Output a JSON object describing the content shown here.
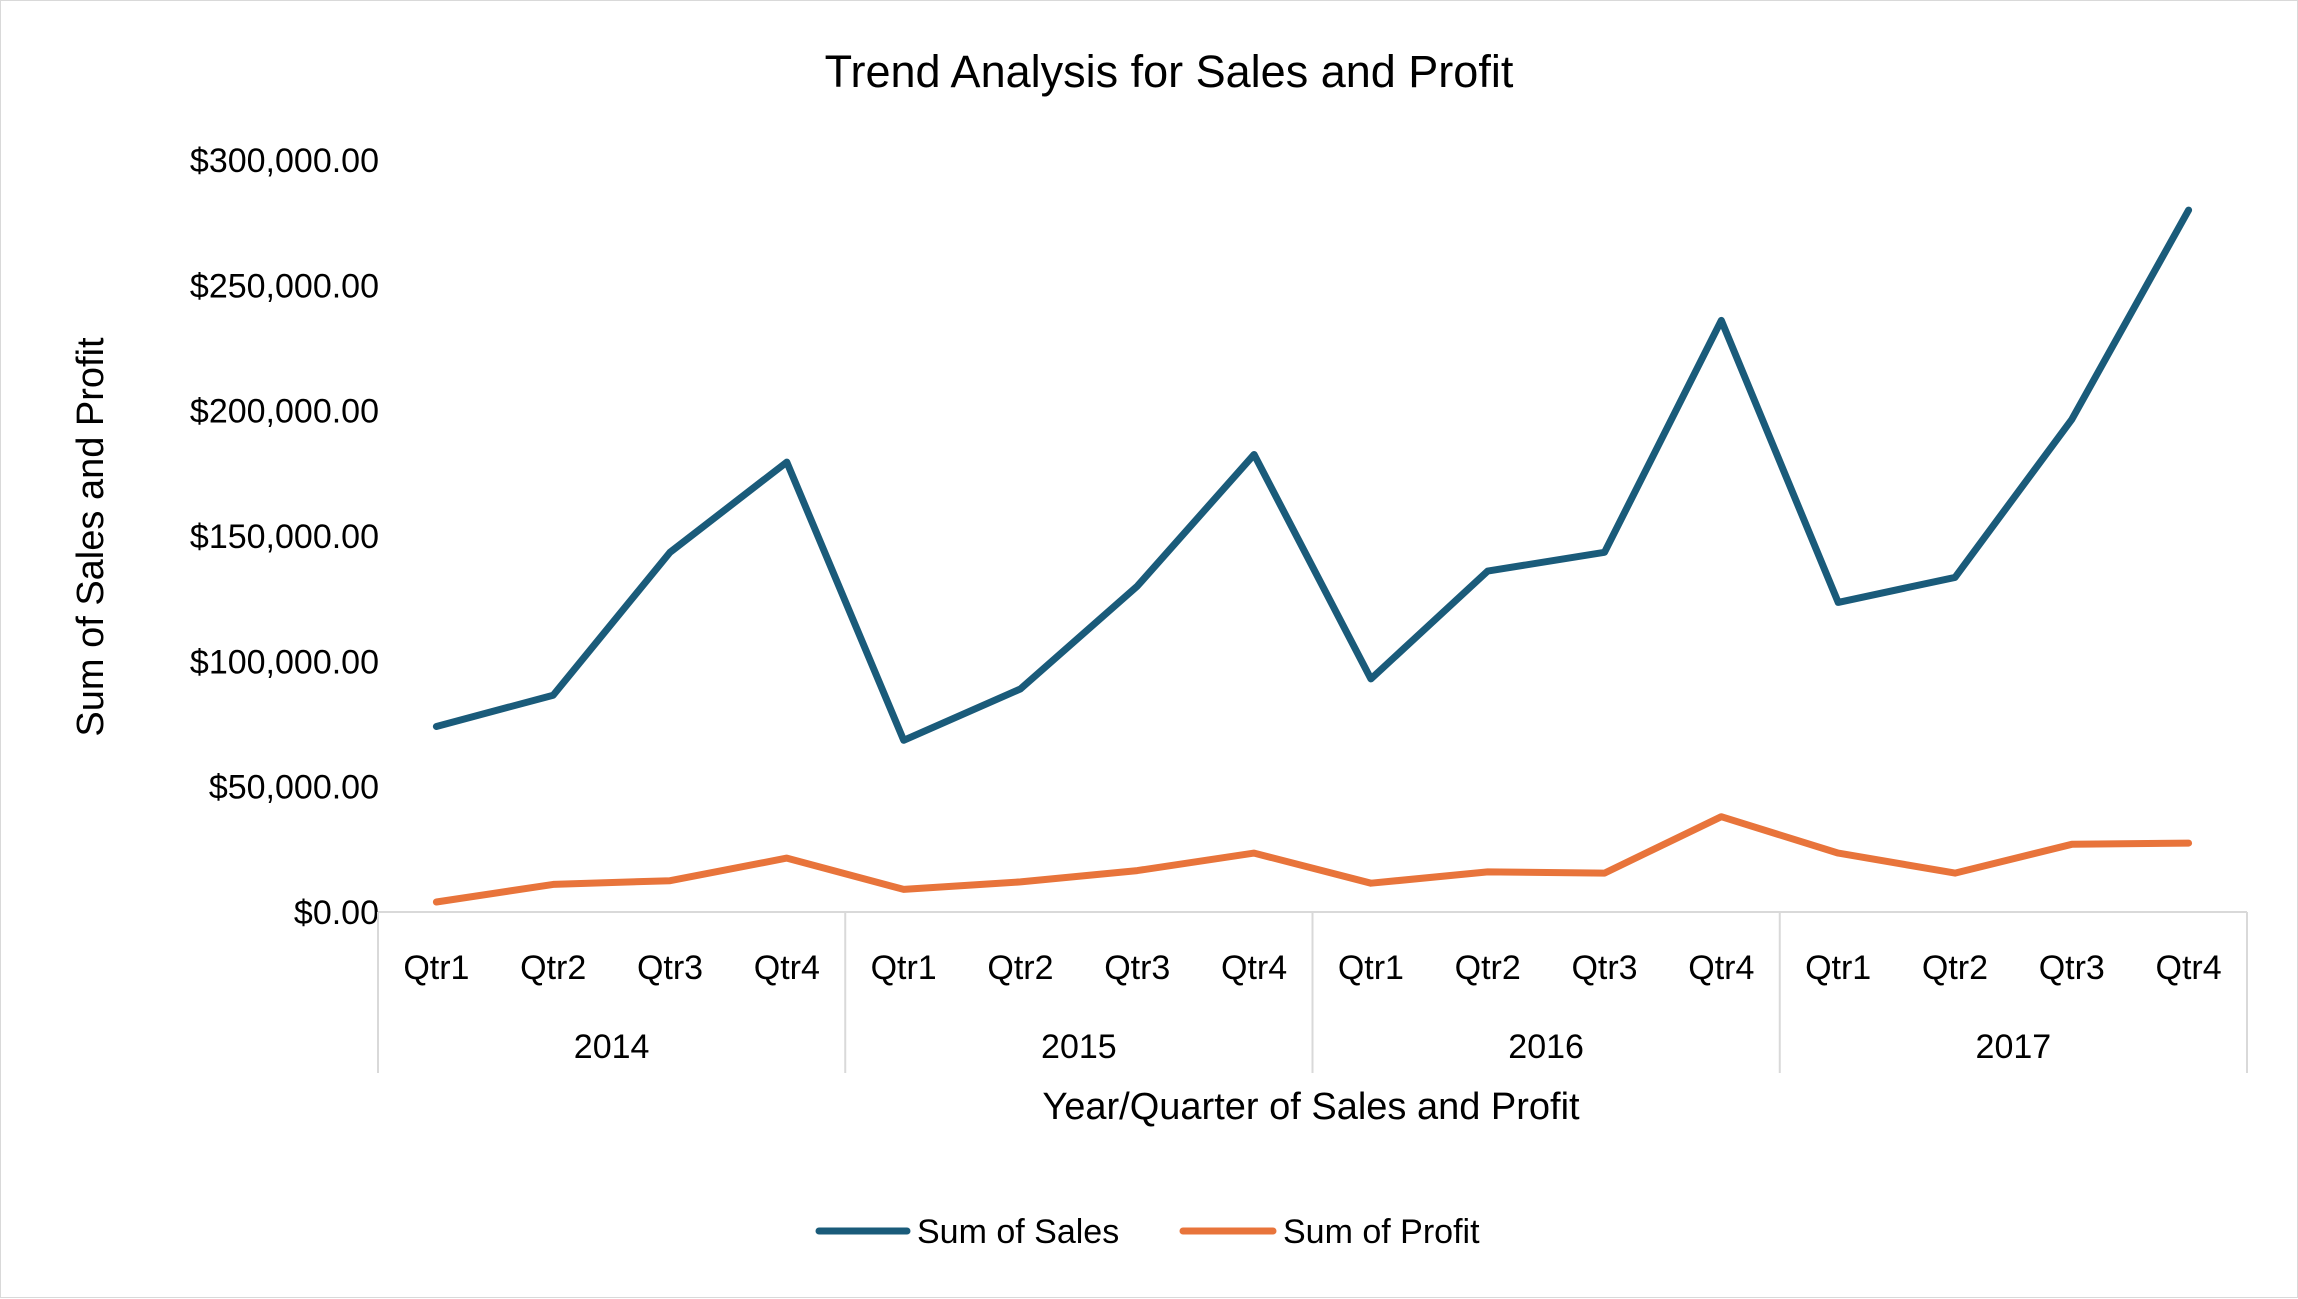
{
  "colors": {
    "sales": "#1a5b7a",
    "profit": "#e8743b",
    "axis": "#d9d9d9"
  },
  "chart_data": {
    "type": "line",
    "title": "Trend Analysis  for Sales and Profit",
    "xlabel": "Year/Quarter of Sales and Profit",
    "ylabel": "Sum of Sales and Profit",
    "ylim": [
      0,
      300000
    ],
    "yticks": [
      {
        "value": 0,
        "label": "$0.00"
      },
      {
        "value": 50000,
        "label": "$50,000.00"
      },
      {
        "value": 100000,
        "label": "$100,000.00"
      },
      {
        "value": 150000,
        "label": "$150,000.00"
      },
      {
        "value": 200000,
        "label": "$200,000.00"
      },
      {
        "value": 250000,
        "label": "$250,000.00"
      },
      {
        "value": 300000,
        "label": "$300,000.00"
      }
    ],
    "categories": [
      "Qtr1",
      "Qtr2",
      "Qtr3",
      "Qtr4",
      "Qtr1",
      "Qtr2",
      "Qtr3",
      "Qtr4",
      "Qtr1",
      "Qtr2",
      "Qtr3",
      "Qtr4",
      "Qtr1",
      "Qtr2",
      "Qtr3",
      "Qtr4"
    ],
    "groups": [
      "2014",
      "2015",
      "2016",
      "2017"
    ],
    "grid": false,
    "legend_position": "bottom",
    "series": [
      {
        "name": "Sum of Sales",
        "color": "#1a5b7a",
        "values": [
          74000,
          86500,
          143500,
          179500,
          68500,
          89000,
          130000,
          182500,
          93000,
          136000,
          143500,
          236000,
          123500,
          133500,
          196500,
          280000
        ]
      },
      {
        "name": "Sum of Profit",
        "color": "#e8743b",
        "values": [
          4000,
          11000,
          12500,
          21500,
          9000,
          12000,
          16500,
          23500,
          11500,
          16000,
          15500,
          38000,
          23500,
          15500,
          27000,
          27500
        ]
      }
    ]
  }
}
